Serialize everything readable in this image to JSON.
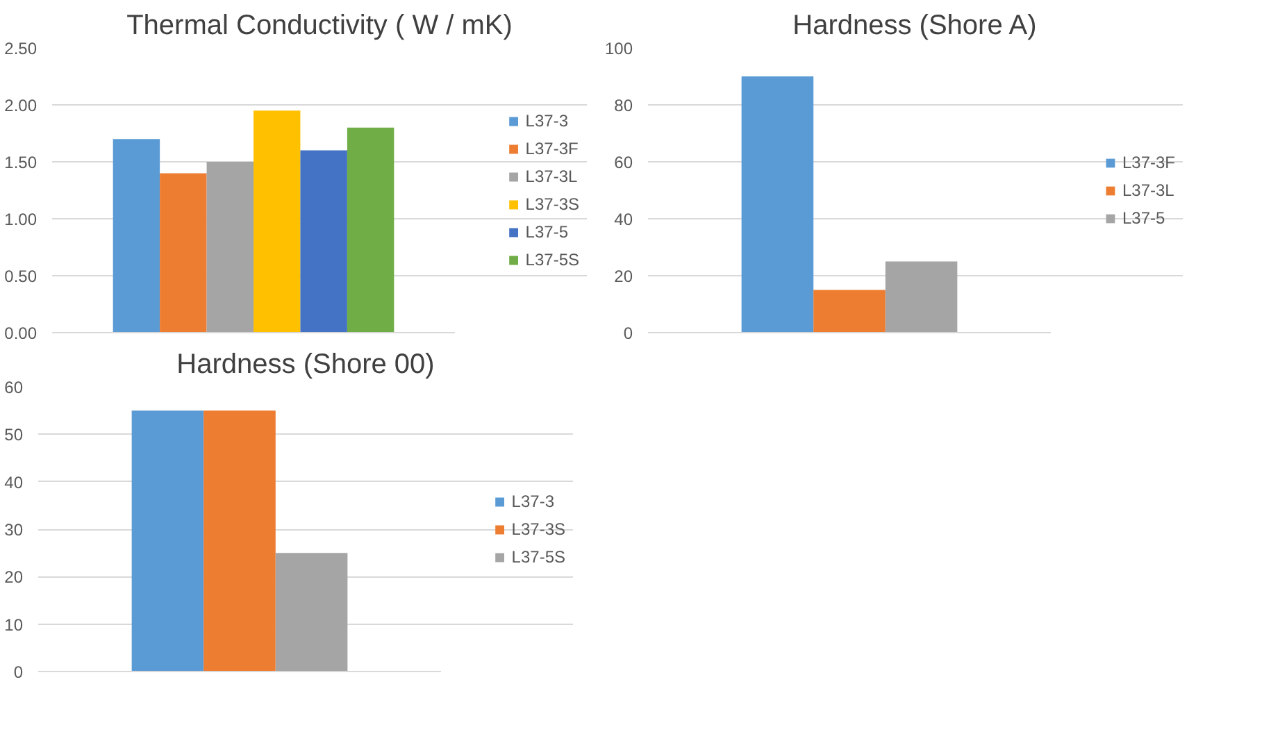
{
  "chart_data": [
    {
      "type": "bar",
      "title": "Thermal Conductivity ( W / mK)",
      "categories": [
        null
      ],
      "series": [
        {
          "name": "L37-3",
          "color": "#5b9bd5",
          "values": [
            1.7
          ]
        },
        {
          "name": "L37-3F",
          "color": "#ed7d31",
          "values": [
            1.4
          ]
        },
        {
          "name": "L37-3L",
          "color": "#a5a5a5",
          "values": [
            1.5
          ]
        },
        {
          "name": "L37-3S",
          "color": "#ffc000",
          "values": [
            1.95
          ]
        },
        {
          "name": "L37-5",
          "color": "#4472c4",
          "values": [
            1.6
          ]
        },
        {
          "name": "L37-5S",
          "color": "#70ad47",
          "values": [
            1.8
          ]
        }
      ],
      "ylim": [
        0,
        2.5
      ],
      "yticks": [
        {
          "value": 0,
          "label": "0.00"
        },
        {
          "value": 0.5,
          "label": "0.50"
        },
        {
          "value": 1,
          "label": "1.00"
        },
        {
          "value": 1.5,
          "label": "1.50"
        },
        {
          "value": 2,
          "label": "2.00"
        },
        {
          "value": 2.5,
          "label": "2.50"
        }
      ],
      "grid": "y",
      "legend": "right"
    },
    {
      "type": "bar",
      "title": "Hardness (Shore A)",
      "categories": [
        null
      ],
      "series": [
        {
          "name": "L37-3F",
          "color": "#5b9bd5",
          "values": [
            90
          ]
        },
        {
          "name": "L37-3L",
          "color": "#ed7d31",
          "values": [
            15
          ]
        },
        {
          "name": "L37-5",
          "color": "#a5a5a5",
          "values": [
            25
          ]
        }
      ],
      "ylim": [
        0,
        100
      ],
      "yticks": [
        0,
        20,
        40,
        60,
        80,
        100
      ],
      "grid": "y",
      "legend": "right"
    },
    {
      "type": "bar",
      "title": "Hardness (Shore 00)",
      "categories": [
        null
      ],
      "series": [
        {
          "name": "L37-3",
          "color": "#5b9bd5",
          "values": [
            55
          ]
        },
        {
          "name": "L37-3S",
          "color": "#ed7d31",
          "values": [
            55
          ]
        },
        {
          "name": "L37-5S",
          "color": "#a5a5a5",
          "values": [
            25
          ]
        }
      ],
      "ylim": [
        0,
        60
      ],
      "yticks": [
        0,
        10,
        20,
        30,
        40,
        50,
        60
      ],
      "grid": "y",
      "legend": "right"
    }
  ]
}
